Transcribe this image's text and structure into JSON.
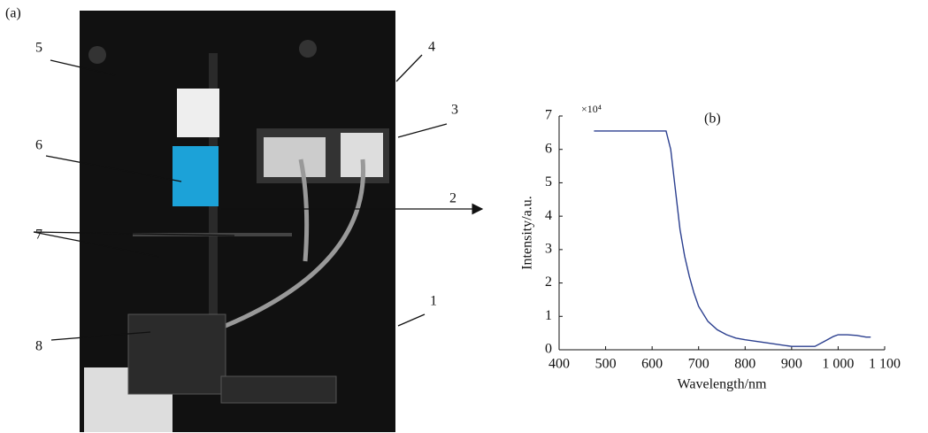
{
  "panel_a": {
    "label": "(a)",
    "callouts": [
      "5",
      "4",
      "3",
      "6",
      "2",
      "7",
      "1",
      "8"
    ]
  },
  "chart_data": {
    "type": "line",
    "annotation": "(b)",
    "y_multiplier": "×10⁴",
    "xlabel": "Wavelength/nm",
    "ylabel": "Intensity/a.u.",
    "color": "#2b3f8f",
    "x": [
      475,
      630,
      640,
      650,
      660,
      670,
      680,
      690,
      700,
      720,
      740,
      760,
      780,
      800,
      850,
      900,
      950,
      970,
      990,
      1000,
      1020,
      1040,
      1060,
      1070
    ],
    "values": [
      6.55,
      6.55,
      6.0,
      4.8,
      3.6,
      2.8,
      2.2,
      1.7,
      1.3,
      0.85,
      0.6,
      0.45,
      0.35,
      0.3,
      0.2,
      0.1,
      0.1,
      0.25,
      0.4,
      0.45,
      0.45,
      0.43,
      0.38,
      0.38
    ],
    "xlim": [
      400,
      1100
    ],
    "ylim": [
      0,
      7
    ],
    "xticks": [
      400,
      500,
      600,
      700,
      800,
      900,
      {
        "value": 1000,
        "label": "1 000"
      },
      {
        "value": 1100,
        "label": "1 100"
      }
    ],
    "yticks": [
      0,
      1,
      2,
      3,
      4,
      5,
      6,
      7
    ]
  }
}
